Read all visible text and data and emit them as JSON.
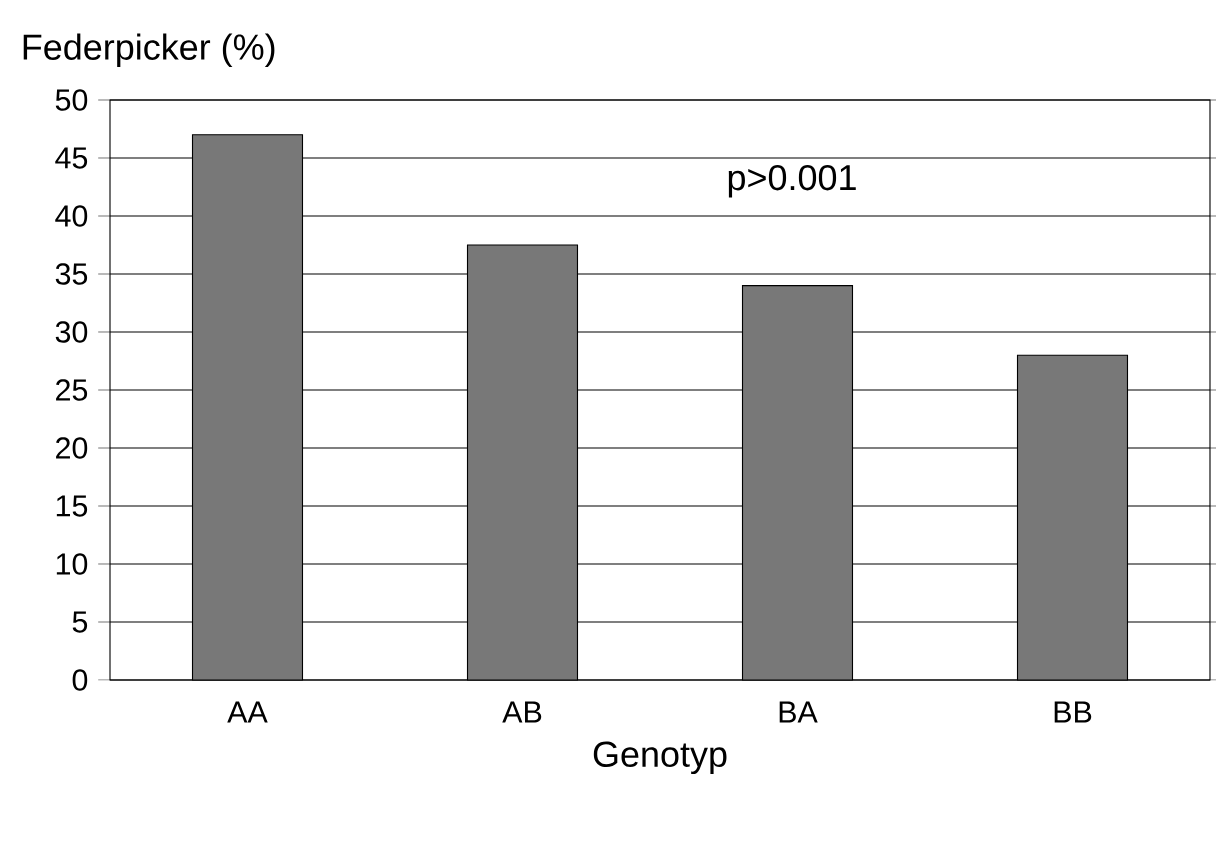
{
  "chart_data": {
    "type": "bar",
    "ylabel": "Federpicker  (%)",
    "xlabel": "Genotyp",
    "categories": [
      "AA",
      "AB",
      "BA",
      "BB"
    ],
    "values": [
      47,
      37.5,
      34,
      28
    ],
    "color": "#787878",
    "ylim": [
      0,
      50
    ],
    "yticks": [
      0,
      5,
      10,
      15,
      20,
      25,
      30,
      35,
      40,
      45,
      50
    ],
    "grid": "y",
    "annotations": [
      "p>0.001"
    ]
  }
}
